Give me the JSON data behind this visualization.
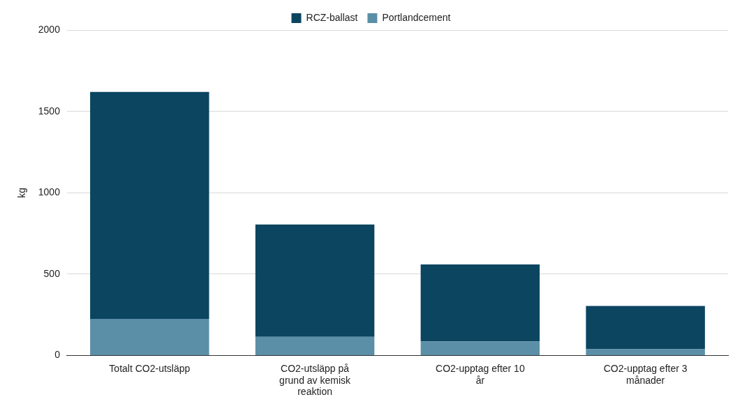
{
  "chart_data": {
    "type": "bar",
    "stacked": true,
    "legend": "top",
    "grid": "y",
    "ylabel": "kg",
    "categories": [
      "Totalt CO2-utsläpp",
      "CO2-utsläpp på grund av kemisk reaktion",
      "CO2-upptag efter 10 år",
      "CO2-upptag efter 3 månader"
    ],
    "series": [
      {
        "name": "Portlandcement",
        "color": "#5b8fa8",
        "values": [
          225,
          115,
          87,
          39
        ]
      },
      {
        "name": "RCZ-ballast",
        "color": "#0b4560",
        "values": [
          1395,
          690,
          473,
          266
        ]
      }
    ],
    "ylim": [
      0,
      2000
    ],
    "yticks": [
      0,
      500,
      1000,
      1500,
      2000
    ]
  }
}
